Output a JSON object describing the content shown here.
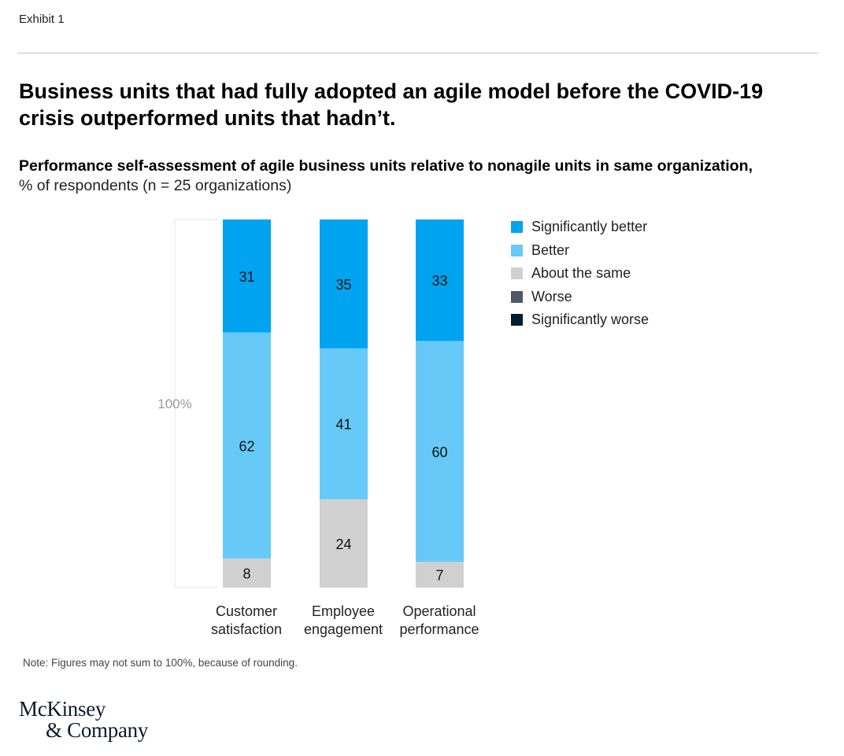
{
  "exhibit_label": "Exhibit 1",
  "headline": "Business units that had fully adopted an agile model before the COVID-19 crisis outperformed units that hadn’t.",
  "subtitle_bold": "Performance self-assessment of agile business units relative to nonagile units in same organization,",
  "subtitle_unit": "% of respondents (n = 25 organizations)",
  "note": "Note: Figures may not sum to 100%, because of rounding.",
  "logo": {
    "line1": "McKinsey",
    "line2": "& Company"
  },
  "colors": {
    "significantly_better": "#00a3f0",
    "better": "#66c9f7",
    "about_the_same": "#d0d0d0",
    "worse": "#4e5964",
    "significantly_worse": "#051c2c",
    "rule": "#c9c9c9"
  },
  "chart_data": {
    "type": "bar",
    "stacked": true,
    "orientation": "vertical",
    "title": "Performance self-assessment of agile business units relative to nonagile units in same organization,",
    "unit": "% of respondents (n = 25 organizations)",
    "scale_label": "100%",
    "ylim": [
      0,
      100
    ],
    "categories": [
      [
        "Customer",
        "satisfaction"
      ],
      [
        "Employee",
        "engagement"
      ],
      [
        "Operational",
        "performance"
      ]
    ],
    "series": [
      {
        "name": "About the same",
        "color": "#d0d0d0",
        "values": [
          8,
          24,
          7
        ]
      },
      {
        "name": "Better",
        "color": "#66c9f7",
        "values": [
          62,
          41,
          60
        ]
      },
      {
        "name": "Significantly better",
        "color": "#00a3f0",
        "values": [
          31,
          35,
          33
        ]
      }
    ],
    "legend": [
      {
        "name": "Significantly better",
        "color": "#00a3f0"
      },
      {
        "name": "Better",
        "color": "#66c9f7"
      },
      {
        "name": "About the same",
        "color": "#d0d0d0"
      },
      {
        "name": "Worse",
        "color": "#4e5964"
      },
      {
        "name": "Significantly worse",
        "color": "#051c2c"
      }
    ],
    "legend_position": "right"
  }
}
